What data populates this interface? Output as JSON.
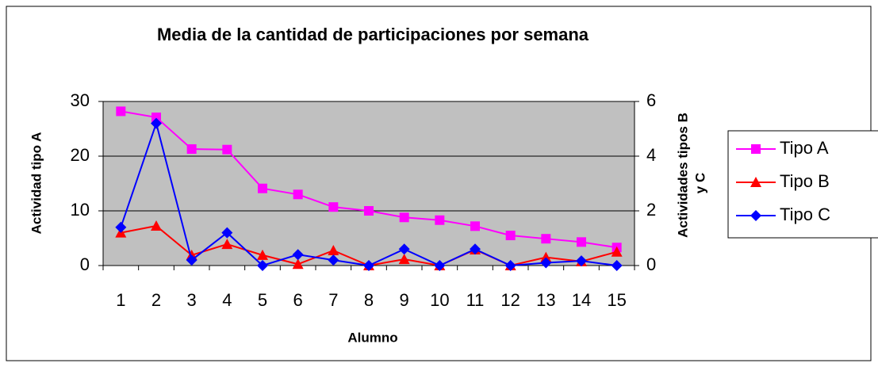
{
  "chart_data": {
    "type": "line",
    "title": "Media de la cantidad de participaciones por semana",
    "xlabel": "Alumno",
    "ylabel": "Actividad tipo A",
    "y2label": [
      "Actividades tipos B",
      "y C"
    ],
    "categories": [
      "1",
      "2",
      "3",
      "4",
      "5",
      "6",
      "7",
      "8",
      "9",
      "10",
      "11",
      "12",
      "13",
      "14",
      "15"
    ],
    "ylim": [
      0,
      30
    ],
    "yticks": [
      0,
      10,
      20,
      30
    ],
    "y2lim": [
      0,
      6
    ],
    "y2ticks": [
      0,
      2,
      4,
      6
    ],
    "grid": true,
    "legend": "right",
    "series": [
      {
        "name": "Tipo A",
        "color": "#ff00ff",
        "marker": "square",
        "values": [
          28.2,
          27.1,
          21.3,
          21.2,
          14.1,
          13,
          10.7,
          10,
          8.8,
          8.3,
          7.2,
          5.5,
          4.9,
          4.3,
          3.3
        ]
      },
      {
        "name": "Tipo B",
        "color": "#ff0000",
        "marker": "triangle",
        "axis": "y2",
        "values": [
          1.2,
          1.45,
          0.38,
          0.78,
          0.38,
          0.05,
          0.55,
          0,
          0.23,
          0,
          0.58,
          0,
          0.3,
          0.15,
          0.5
        ]
      },
      {
        "name": "Tipo C",
        "color": "#0000ff",
        "marker": "diamond",
        "axis": "y2",
        "values": [
          1.4,
          5.2,
          0.2,
          1.2,
          0,
          0.4,
          0.2,
          0,
          0.6,
          0,
          0.6,
          0,
          0.1,
          0.17,
          0
        ]
      }
    ]
  }
}
